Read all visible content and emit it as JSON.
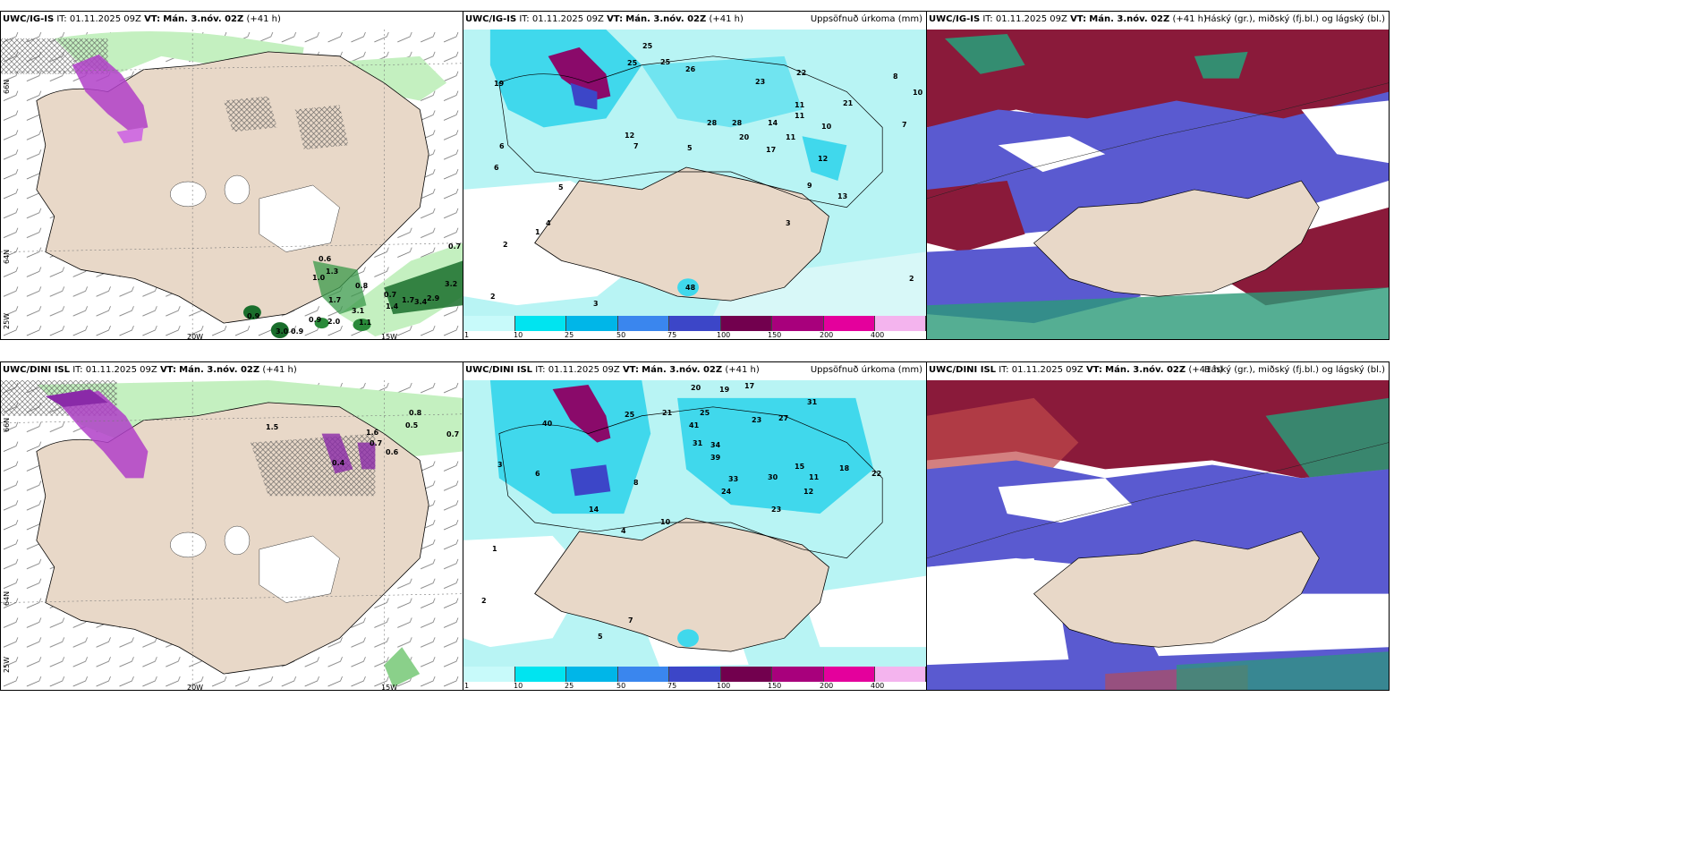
{
  "panels": {
    "p1": {
      "model": "UWC/IG-IS",
      "it_label": "IT:",
      "it_value": "01.11.2025 09Z",
      "vt_label": "VT:",
      "vt_value": "Mán. 3.nóv. 02Z",
      "lead": "(+41 h)",
      "right_title": ""
    },
    "p2": {
      "model": "UWC/IG-IS",
      "it_label": "IT:",
      "it_value": "01.11.2025 09Z",
      "vt_label": "VT:",
      "vt_value": "Mán. 3.nóv. 02Z",
      "lead": "(+41 h)",
      "right_title": "Uppsöfnuð úrkoma (mm)"
    },
    "p3": {
      "model": "UWC/IG-IS",
      "it_label": "IT:",
      "it_value": "01.11.2025 09Z",
      "vt_label": "VT:",
      "vt_value": "Mán. 3.nóv. 02Z",
      "lead": "(+41 h)",
      "right_title": "Háský (gr.), miðský (fj.bl.) og lágský (bl.)"
    },
    "p4": {
      "model": "UWC/DINI ISL",
      "it_label": "IT:",
      "it_value": "01.11.2025 09Z",
      "vt_label": "VT:",
      "vt_value": "Mán. 3.nóv. 02Z",
      "lead": "(+41 h)",
      "right_title": ""
    },
    "p5": {
      "model": "UWC/DINI ISL",
      "it_label": "IT:",
      "it_value": "01.11.2025 09Z",
      "vt_label": "VT:",
      "vt_value": "Mán. 3.nóv. 02Z",
      "lead": "(+41 h)",
      "right_title": "Uppsöfnuð úrkoma (mm)"
    },
    "p6": {
      "model": "UWC/DINI ISL",
      "it_label": "IT:",
      "it_value": "01.11.2025 09Z",
      "vt_label": "VT:",
      "vt_value": "Mán. 3.nóv. 02Z",
      "lead": "(+41 h)",
      "right_title": "Háský (gr.), miðský (fj.bl.) og lágský (bl.)"
    }
  },
  "axis_labels": {
    "lat66": "66N",
    "lat64": "64N",
    "lon20": "20W",
    "lon15": "15W",
    "lon25": "25W"
  },
  "colorbar": {
    "ticks": [
      "1",
      "10",
      "25",
      "50",
      "75",
      "100",
      "150",
      "200",
      "400"
    ],
    "colors": [
      "#c8fafa",
      "#00e4f0",
      "#00b6e8",
      "#3a86ee",
      "#3c46c8",
      "#72004e",
      "#a8007c",
      "#e4009c",
      "#f4b4ee"
    ]
  },
  "colors": {
    "land": "#e8d8c8",
    "sea": "#ffffff",
    "precip_light": "#b8f4f4",
    "precip_mid": "#40d8ec",
    "light_green": "#c4f0c0",
    "dark_green": "#1a6e2c",
    "magenta": "#b040c8",
    "high_cloud": "#2a9a78",
    "mid_cloud": "#5a5ad0",
    "low_cloud": "#8a1a3a"
  },
  "p1_values": [
    "0.7",
    "0.6",
    "1.3",
    "1.0",
    "0.8",
    "1.7",
    "0.7",
    "1.4",
    "3.2",
    "0.9",
    "3.0",
    "0.9",
    "0.9",
    "2.0",
    "1.1",
    "3.1",
    "1.7",
    "2.9",
    "3.4"
  ],
  "p2_values": [
    "25",
    "25",
    "25",
    "19",
    "26",
    "23",
    "22",
    "21",
    "8",
    "10",
    "7",
    "6",
    "6",
    "12",
    "7",
    "5",
    "5",
    "4",
    "2",
    "1",
    "2",
    "3",
    "2",
    "12",
    "20",
    "28",
    "28",
    "14",
    "17",
    "11",
    "11",
    "10",
    "11",
    "12",
    "9",
    "13",
    "3",
    "48",
    "2"
  ],
  "p4_values": [
    "0.8",
    "0.5",
    "0.7",
    "1.5",
    "0.6",
    "1.6",
    "0.4",
    "0.7"
  ],
  "p5_values": [
    "20",
    "19",
    "17",
    "25",
    "21",
    "25",
    "27",
    "31",
    "23",
    "40",
    "41",
    "31",
    "34",
    "39",
    "33",
    "30",
    "22",
    "23",
    "24",
    "15",
    "11",
    "12",
    "18",
    "14",
    "8",
    "6",
    "10",
    "3",
    "4",
    "2",
    "7",
    "5",
    "1"
  ]
}
